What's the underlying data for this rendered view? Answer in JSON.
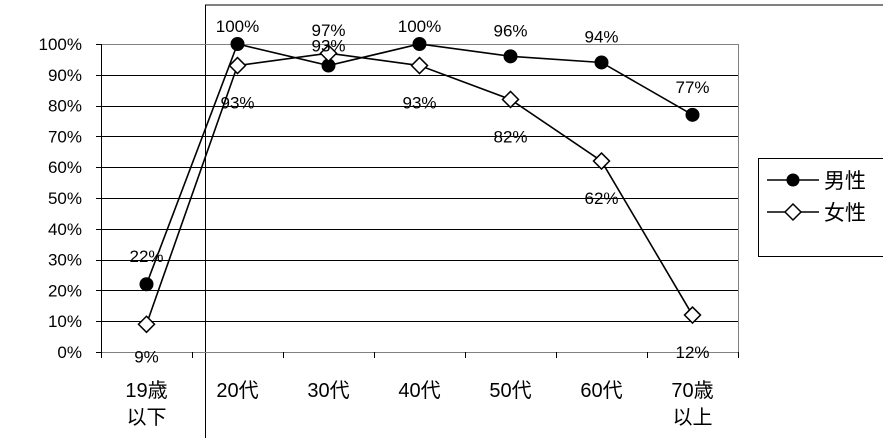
{
  "chart_data": {
    "type": "line",
    "categories": [
      "19歳\n以下",
      "20代",
      "30代",
      "40代",
      "50代",
      "60代",
      "70歳\n以上"
    ],
    "y_ticks": [
      "0%",
      "10%",
      "20%",
      "30%",
      "40%",
      "50%",
      "60%",
      "70%",
      "80%",
      "90%",
      "100%"
    ],
    "ylim": [
      0,
      100
    ],
    "grid": true,
    "legend_position": "right",
    "series": [
      {
        "name": "男性",
        "marker": "filled-circle",
        "color": "#000000",
        "values": [
          22,
          100,
          93,
          100,
          96,
          94,
          77
        ],
        "labels": [
          "22%",
          "100%",
          "93%",
          "100%",
          "96%",
          "94%",
          "77%"
        ]
      },
      {
        "name": "女性",
        "marker": "open-diamond",
        "color": "#000000",
        "values": [
          9,
          93,
          97,
          93,
          82,
          62,
          12
        ],
        "labels": [
          "9%",
          "93%",
          "97%",
          "93%",
          "82%",
          "62%",
          "12%"
        ]
      }
    ]
  }
}
